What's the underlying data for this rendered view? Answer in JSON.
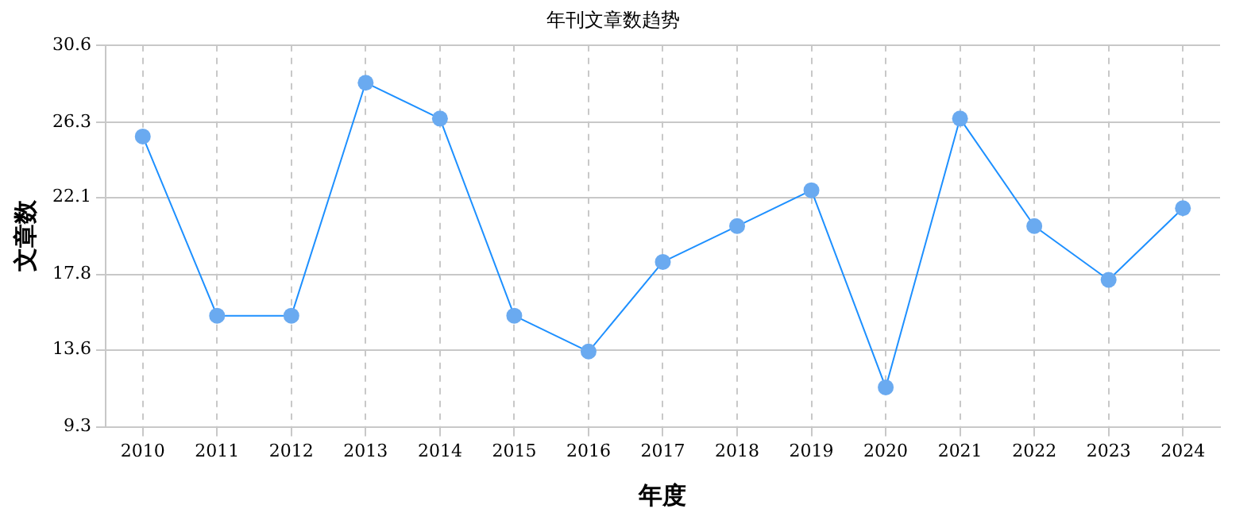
{
  "chart_data": {
    "type": "line",
    "title": "年刊文章数趋势",
    "xlabel": "年度",
    "ylabel": "文章数",
    "categories": [
      "2010",
      "2011",
      "2012",
      "2013",
      "2014",
      "2015",
      "2016",
      "2017",
      "2018",
      "2019",
      "2020",
      "2021",
      "2022",
      "2023",
      "2024"
    ],
    "series": [
      {
        "color": "#1e90ff",
        "values": [
          25.5,
          15.5,
          15.5,
          28.5,
          26.5,
          15.5,
          13.5,
          18.5,
          20.5,
          22.5,
          11.5,
          26.5,
          20.5,
          17.5,
          21.5
        ]
      }
    ],
    "ylim": [
      9.3,
      30.6
    ],
    "yticks": [
      9.3,
      13.6,
      17.8,
      22.1,
      26.3,
      30.6
    ],
    "grid": true,
    "legend": false,
    "marker": "circle",
    "line_style": "solid"
  }
}
